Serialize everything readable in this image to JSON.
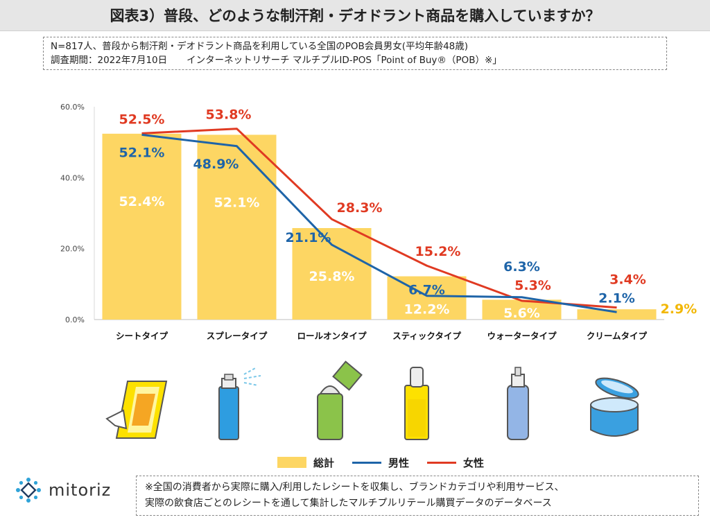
{
  "header": {
    "title": "図表3）普段、どのような制汗剤・デオドラント商品を購入していますか？"
  },
  "note": {
    "line1": "N=817人、普段から制汗剤・デオドラント商品を利用している全国のPOB会員男女(平均年齢48歳)",
    "line2a": "調査期間：2022年7月10日",
    "line2b": "インターネットリサーチ マルチプルID-POS「Point of Buy®（POB）※」"
  },
  "chart_data": {
    "type": "bar",
    "categories": [
      "シートタイプ",
      "スプレータイプ",
      "ロールオンタイプ",
      "スティックタイプ",
      "ウォータータイプ",
      "クリームタイプ"
    ],
    "ylim": [
      0,
      60
    ],
    "yticks": [
      "0.0%",
      "20.0%",
      "40.0%",
      "60.0%"
    ],
    "series": [
      {
        "name": "総計",
        "kind": "bar",
        "color": "#fdd663",
        "label_color": "#ffffff",
        "values": [
          52.4,
          52.1,
          25.8,
          12.2,
          5.6,
          2.9
        ],
        "labels": [
          "52.4%",
          "52.1%",
          "25.8%",
          "12.2%",
          "5.6%",
          "2.9%"
        ]
      },
      {
        "name": "男性",
        "kind": "line",
        "color": "#1e64a8",
        "values": [
          52.1,
          48.9,
          21.1,
          6.7,
          6.3,
          2.1
        ],
        "labels": [
          "52.1%",
          "48.9%",
          "21.1%",
          "6.7%",
          "6.3%",
          "2.1%"
        ]
      },
      {
        "name": "女性",
        "kind": "line",
        "color": "#e03a22",
        "values": [
          52.5,
          53.8,
          28.3,
          15.2,
          5.3,
          3.4
        ],
        "labels": [
          "52.5%",
          "53.8%",
          "28.3%",
          "15.2%",
          "5.3%",
          "3.4%"
        ]
      }
    ],
    "legend_position": "bottom"
  },
  "icons": [
    "sheet-wipe-icon",
    "spray-can-icon",
    "roll-on-icon",
    "stick-icon",
    "water-bottle-icon",
    "cream-jar-icon"
  ],
  "legend": {
    "total": "総計",
    "male": "男性",
    "female": "女性"
  },
  "logo": {
    "text": "mitoriz"
  },
  "footnote": {
    "line1": "※全国の消費者から実際に購入/利用したレシートを収集し、ブランドカテゴリや利用サービス、",
    "line2": "実際の飲食店ごとのレシートを通して集計したマルチプルリテール購買データのデータベース"
  }
}
